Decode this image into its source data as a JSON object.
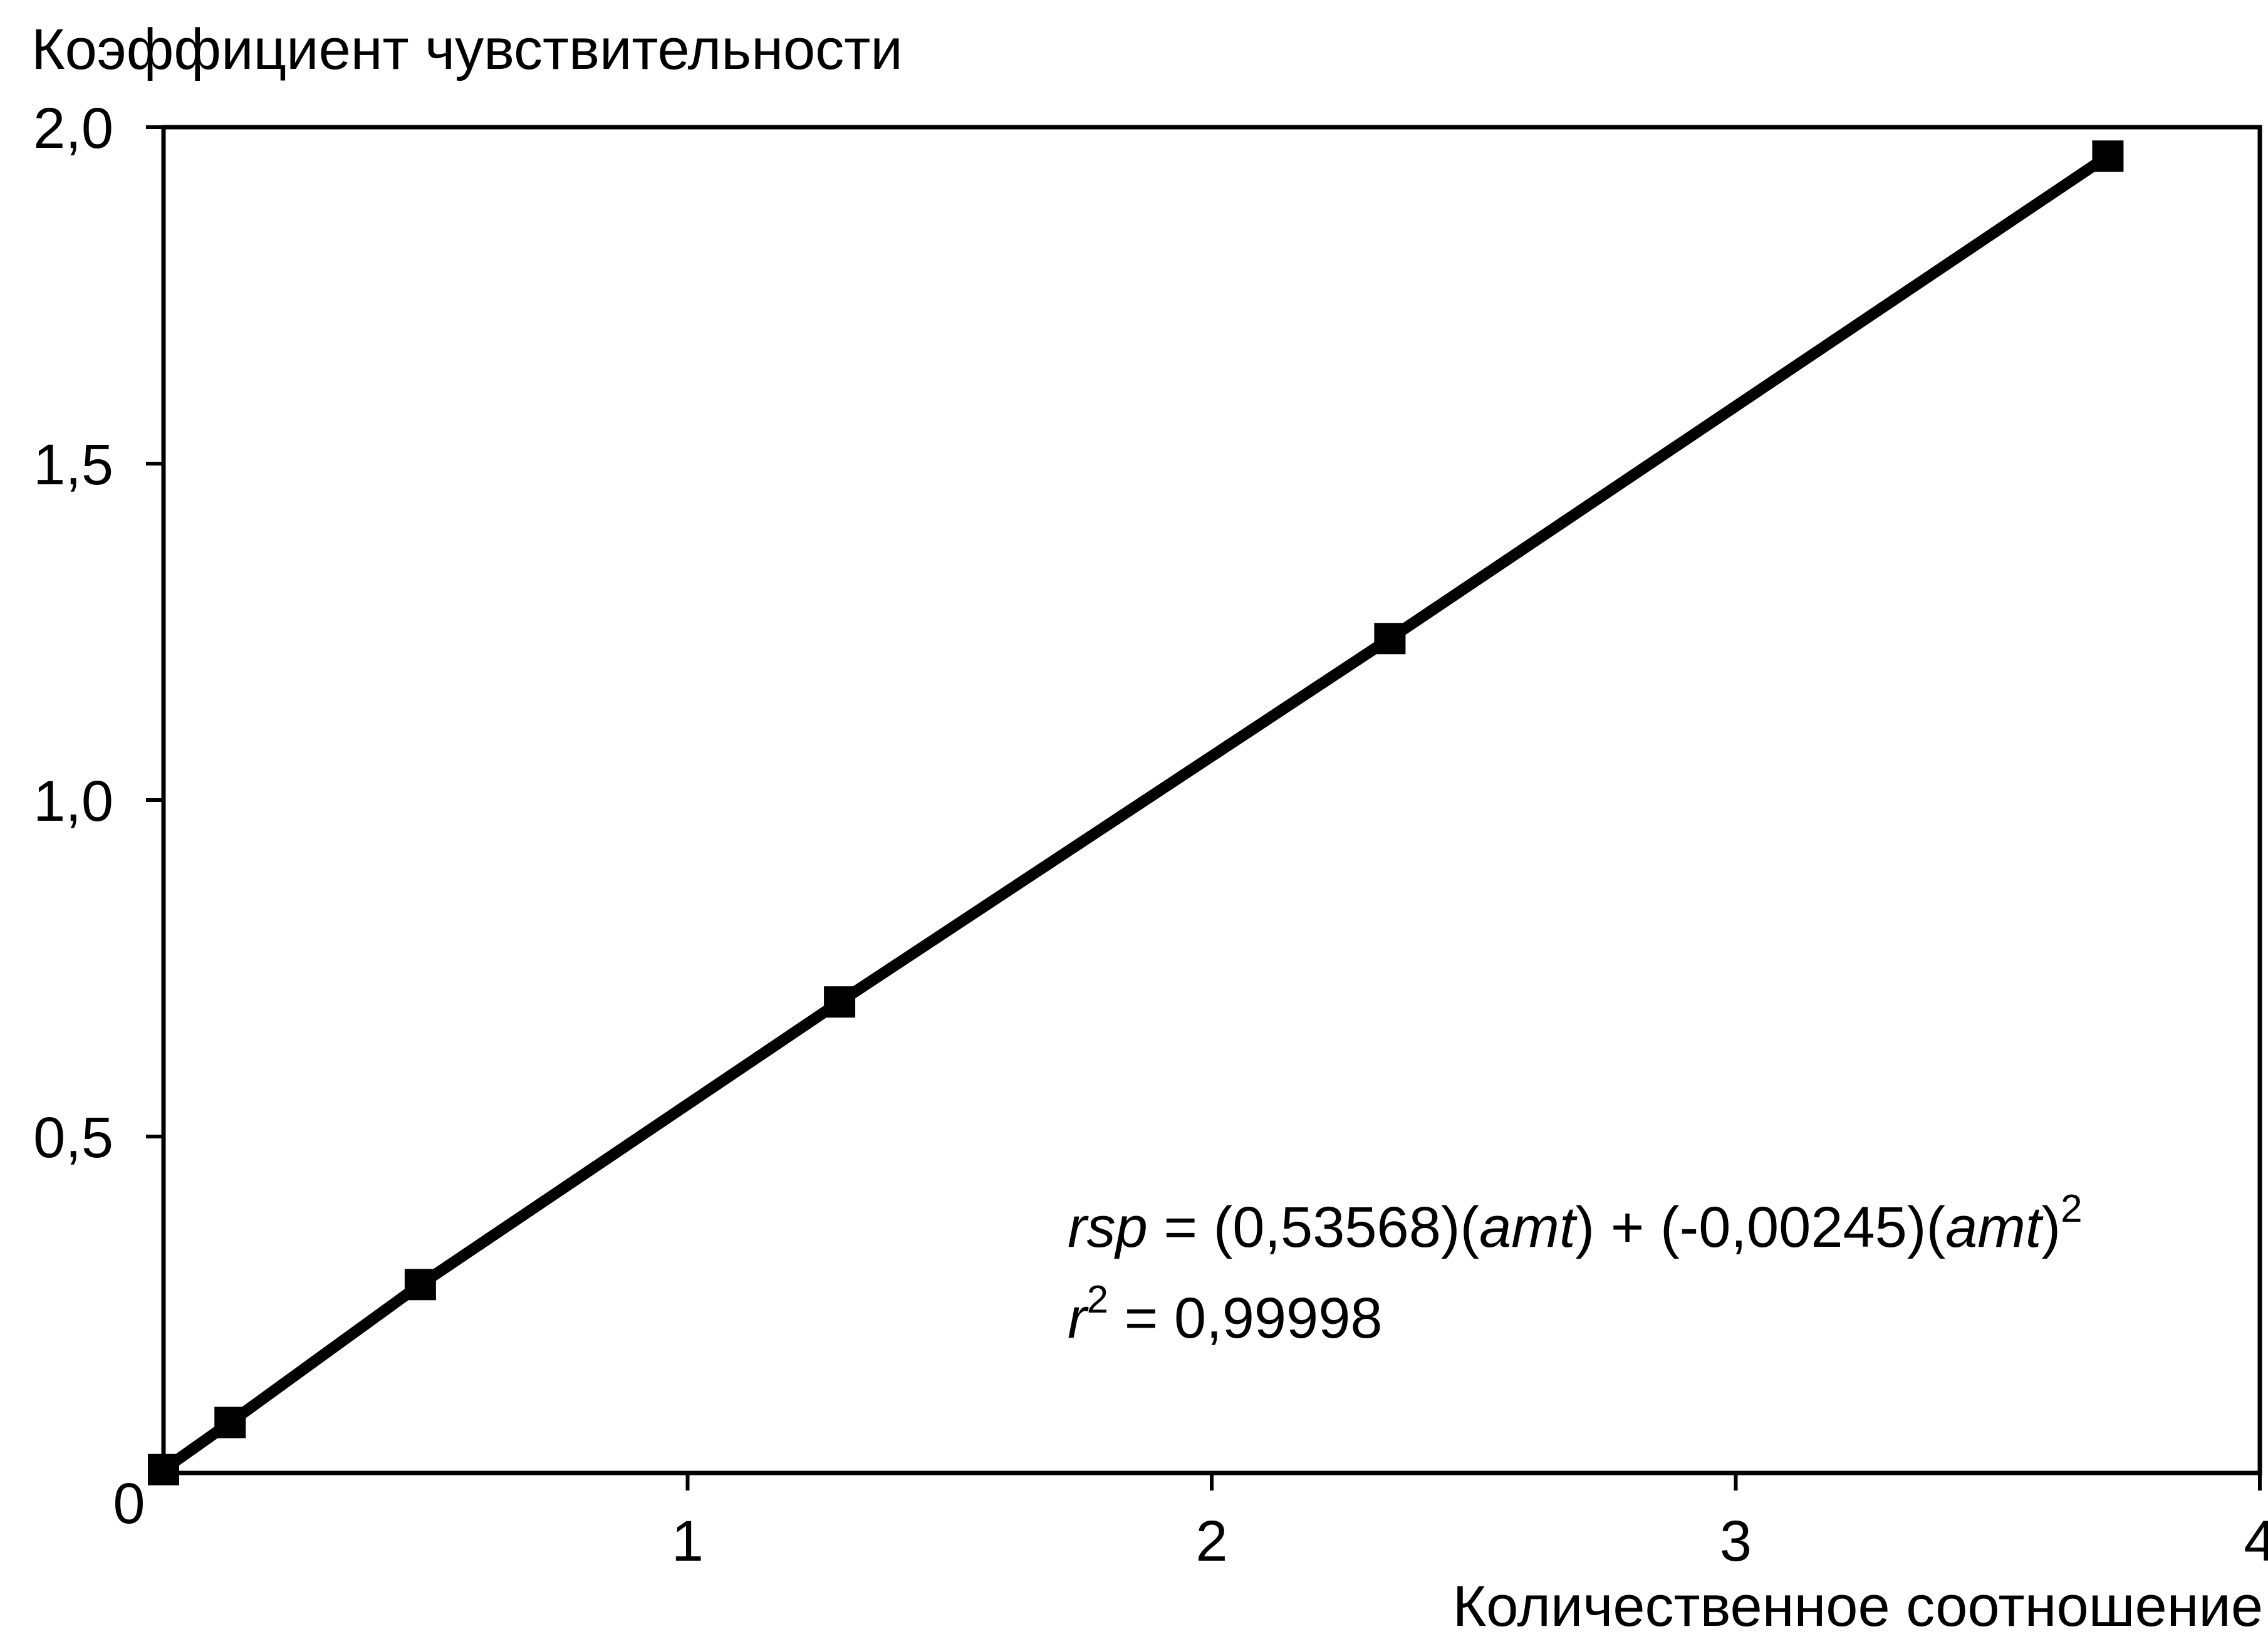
{
  "chart_data": {
    "type": "line",
    "y_label": "Коэффициент чувствительности",
    "x_label": "Количественное соотношение",
    "x": [
      0,
      0.127,
      0.49,
      1.29,
      2.34,
      3.71
    ],
    "series": [
      {
        "color": "#000000",
        "values": [
          0.005,
          0.075,
          0.28,
          0.7,
          1.24,
          1.957
        ]
      }
    ],
    "xlim": [
      0,
      4
    ],
    "xticks": [
      0,
      1,
      2,
      3,
      4
    ],
    "ylim": [
      0,
      2
    ],
    "yticks": [
      {
        "value": 0.5,
        "label": "0,5"
      },
      {
        "value": 1.0,
        "label": "1,0"
      },
      {
        "value": 1.5,
        "label": "1,5"
      },
      {
        "value": 2.0,
        "label": "2,0"
      }
    ],
    "annotation": {
      "line1": [
        "rsp",
        " = (0,53568)(",
        "amt",
        ") + (-0,00245)(",
        "amt",
        ")",
        "2"
      ],
      "line2": [
        "r",
        "2",
        " = 0,99998"
      ]
    }
  }
}
